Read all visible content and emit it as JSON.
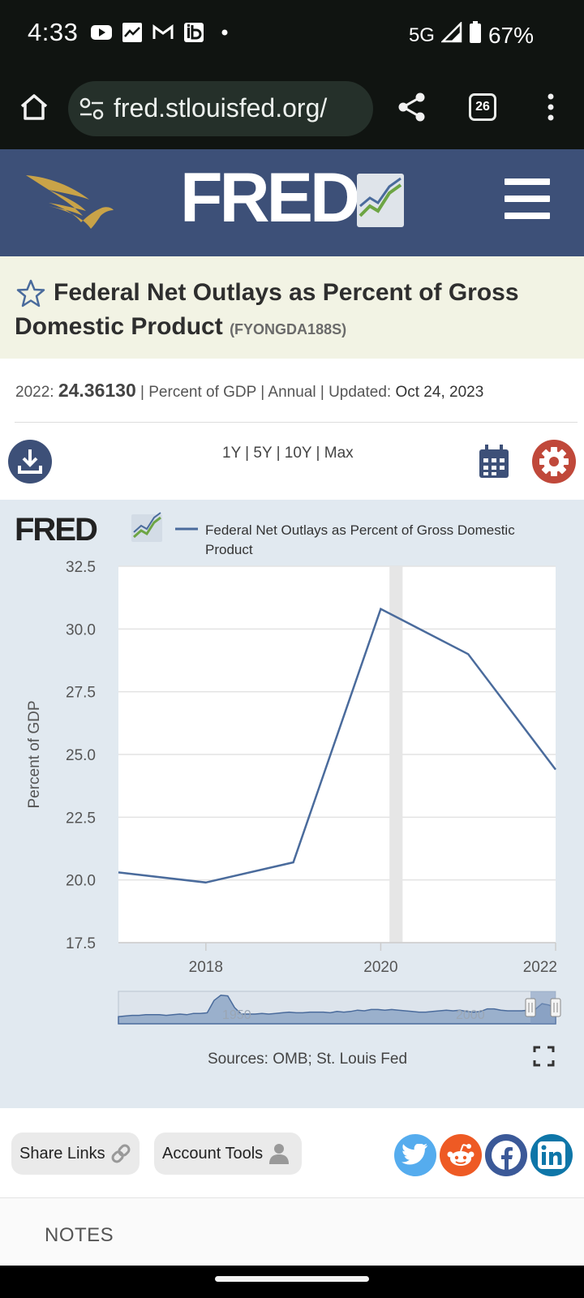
{
  "status_bar": {
    "time": "4:33",
    "network": "5G",
    "battery": "67%",
    "icons": [
      "youtube-icon",
      "chart-icon",
      "gmail-icon",
      "ib-icon",
      "dot-icon",
      "signal-icon",
      "battery-icon"
    ]
  },
  "browser": {
    "url": "fred.stlouisfed.org/",
    "tab_count": "26"
  },
  "header": {
    "logo_text": "FRED"
  },
  "series": {
    "title": "Federal Net Outlays as Percent of Gross Domestic Product",
    "code": "(FYONGDA188S)",
    "year": "2022:",
    "value": "24.36130",
    "units": "| Percent of GDP | Annual | Updated:",
    "updated": "Oct 24, 2023"
  },
  "range_links": "1Y | 5Y | 10Y | Max",
  "chart_data": {
    "type": "line",
    "legend_logo": "FRED",
    "legend_label_line1": "Federal Net Outlays as Percent of Gross Domestic",
    "legend_label_line2": "Product",
    "series": [
      {
        "name": "Federal Net Outlays as Percent of Gross Domestic Product",
        "x": [
          2017,
          2018,
          2019,
          2020,
          2021,
          2022
        ],
        "y": [
          20.3,
          19.9,
          20.7,
          30.8,
          29.0,
          24.4
        ]
      }
    ],
    "ylabel": "Percent of GDP",
    "ylim": [
      17.5,
      32.5
    ],
    "yticks": [
      "32.5",
      "30.0",
      "27.5",
      "25.0",
      "22.5",
      "20.0",
      "17.5"
    ],
    "xlim": [
      2017,
      2022
    ],
    "xticks": [
      "2018",
      "2020",
      "2022"
    ],
    "recession": [
      2020.1,
      2020.25
    ],
    "grid": true,
    "navigator_labels": [
      "1950",
      "2000"
    ],
    "navigator_series": [
      11,
      12,
      13,
      13,
      14,
      14,
      14,
      13,
      14,
      15,
      14,
      16,
      16,
      17,
      36,
      44,
      43,
      25,
      15,
      15,
      15,
      16,
      15,
      16,
      17,
      18,
      17,
      17,
      18,
      18,
      18,
      17,
      19,
      18,
      19,
      21,
      20,
      22,
      22,
      21,
      22,
      21,
      20,
      19,
      18,
      18,
      19,
      20,
      21,
      20,
      21,
      19,
      18,
      19,
      23,
      23,
      21,
      20,
      20,
      20,
      21,
      22,
      31,
      29,
      24
    ],
    "source": "Sources: OMB; St. Louis Fed"
  },
  "buttons": {
    "share_links": "Share Links",
    "account_tools": "Account Tools"
  },
  "social": [
    "twitter-icon",
    "reddit-icon",
    "facebook-icon",
    "linkedin-icon"
  ],
  "colors": {
    "fred_navy": "#3d5078",
    "series_line": "#4a6b9c",
    "title_band": "#f2f3e4",
    "chart_panel": "#e1e9f0",
    "settings_red": "#c0483a"
  },
  "notes_label": "NOTES"
}
